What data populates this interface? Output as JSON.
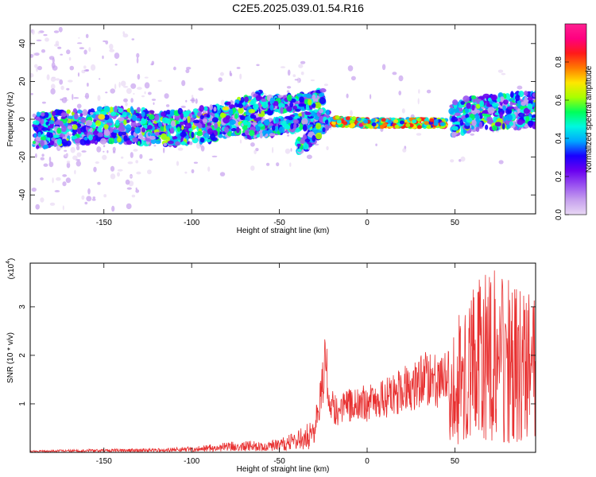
{
  "title": "C2E5.2025.039.01.54.R16",
  "chart_data": [
    {
      "type": "heatmap",
      "xlabel": "Height of straight line (km)",
      "ylabel": "Frequency (Hz)",
      "xlim": [
        -192,
        96
      ],
      "ylim": [
        -50,
        50
      ],
      "xticks": [
        -150,
        -100,
        -50,
        0,
        50
      ],
      "yticks": [
        -40,
        -20,
        0,
        20,
        40
      ],
      "colorbar": {
        "label": "Normalized spectral amplitude",
        "range": [
          0,
          1
        ],
        "ticks": [
          "0.0",
          "0.2",
          "0.4",
          "0.6",
          "0.8"
        ],
        "colors": [
          "#e8d8f4",
          "#c6a0ee",
          "#9a52f0",
          "#6a00f0",
          "#1900ff",
          "#00a8ff",
          "#00f8e0",
          "#00ff5a",
          "#a8ff00",
          "#ffe600",
          "#ff7a00",
          "#ff1a1a",
          "#ff0080",
          "#ff2090"
        ]
      },
      "series": [
        {
          "x": [
            -190,
            -175,
            -160,
            -145,
            -130,
            -115,
            -100,
            -85,
            -70,
            -60
          ],
          "y": [
            -6,
            -5,
            -4,
            -3,
            -4,
            -5,
            -4,
            -2,
            2,
            6
          ]
        },
        {
          "x": [
            -60,
            -50,
            -40,
            -30,
            -25
          ],
          "y": [
            7,
            8,
            9,
            10,
            12
          ]
        },
        {
          "x": [
            -70,
            -60,
            -50,
            -40,
            -30,
            -25
          ],
          "y": [
            -6,
            -5,
            -4,
            -2,
            0,
            2
          ]
        },
        {
          "x": [
            -40,
            -35,
            -30,
            -25,
            -22
          ],
          "y": [
            -15,
            -12,
            -8,
            -3,
            0
          ]
        },
        {
          "x": [
            -20,
            0,
            20,
            45
          ],
          "y": [
            -1,
            -2,
            -2,
            -2
          ]
        },
        {
          "x": [
            48,
            60,
            75,
            96
          ],
          "y": [
            0,
            3,
            4,
            5
          ]
        }
      ]
    },
    {
      "type": "line",
      "xlabel": "Height of straight line (km)",
      "ylabel": "SNR (10 * v/v)",
      "yscale_note": "(x10",
      "yscale_exp": "4",
      "xlim": [
        -192,
        96
      ],
      "ylim": [
        0,
        3.9
      ],
      "xticks": [
        -150,
        -100,
        -50,
        0,
        50
      ],
      "yticks": [
        1,
        2,
        3
      ],
      "color": "#e83030",
      "envelope": {
        "x": [
          -192,
          -150,
          -120,
          -100,
          -90,
          -80,
          -70,
          -60,
          -50,
          -40,
          -30,
          -26,
          -24,
          -22,
          -20,
          -15,
          -10,
          0,
          10,
          20,
          30,
          35,
          40,
          47,
          50,
          60,
          70,
          80,
          90,
          96
        ],
        "y": [
          0.04,
          0.07,
          0.08,
          0.12,
          0.16,
          0.22,
          0.25,
          0.22,
          0.28,
          0.45,
          0.7,
          1.8,
          2.8,
          1.6,
          1.3,
          1.2,
          1.35,
          1.4,
          1.5,
          1.8,
          2.0,
          2.15,
          2.0,
          2.1,
          2.7,
          3.4,
          3.9,
          3.6,
          3.3,
          3.2
        ]
      }
    }
  ]
}
